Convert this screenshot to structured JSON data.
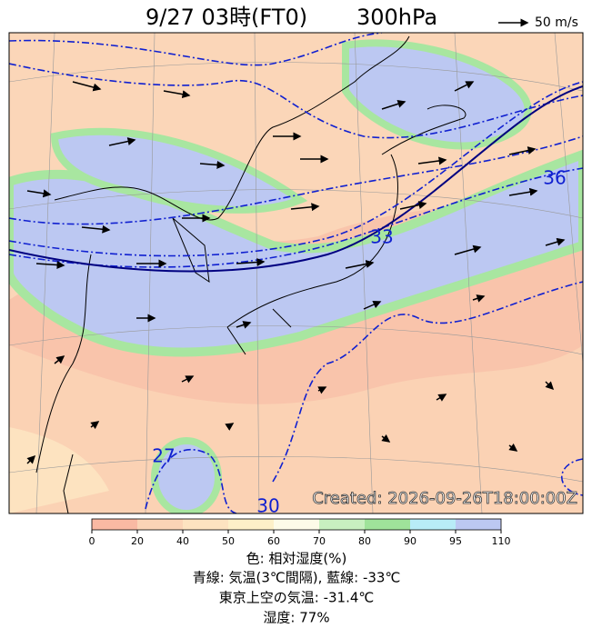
{
  "header": {
    "title": "9/27 03時(FT0)",
    "level": "300hPa",
    "arrow_legend": "50 m/s"
  },
  "map": {
    "contour_labels": [
      "36",
      "33",
      "27",
      "30"
    ],
    "created": "Created: 2026-09-26T18:00:00Z"
  },
  "colorbar": {
    "ticks": [
      0,
      20,
      40,
      50,
      60,
      70,
      80,
      90,
      95,
      110
    ],
    "colors": [
      "#f9b9a3",
      "#fbd4b6",
      "#fde3c0",
      "#fdf0c8",
      "#fdfbe8",
      "#c8f0c0",
      "#9fe39a",
      "#b8ecf7",
      "#bcc8f2"
    ]
  },
  "captions": [
    "色: 相対湿度(%)",
    "青線: 気温(3℃間隔), 藍線: -33℃",
    "東京上空の気温: -31.4℃",
    "湿度: 77%"
  ]
}
